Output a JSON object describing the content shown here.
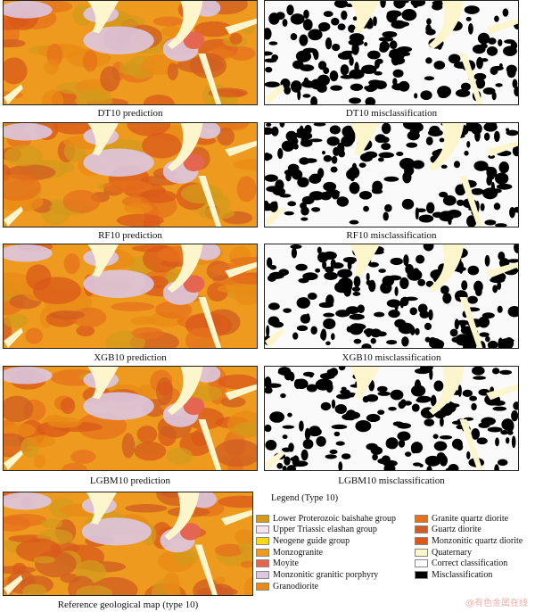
{
  "panels": [
    {
      "caption": "DT10 prediction",
      "kind": "prediction"
    },
    {
      "caption": "DT10 misclassification",
      "kind": "misclassification"
    },
    {
      "caption": "RF10 prediction",
      "kind": "prediction"
    },
    {
      "caption": "RF10 misclassification",
      "kind": "misclassification"
    },
    {
      "caption": "XGB10 prediction",
      "kind": "prediction"
    },
    {
      "caption": "XGB10 misclassification",
      "kind": "misclassification"
    },
    {
      "caption": "LGBM10 prediction",
      "kind": "prediction"
    },
    {
      "caption": "LGBM10 misclassification",
      "kind": "misclassification"
    },
    {
      "caption": "Reference geological map (type 10)",
      "kind": "reference"
    }
  ],
  "legend": {
    "title": "Legend (Type 10)",
    "items": [
      {
        "label": "Lower Proterozoic baishahe group",
        "color": "#d39a1c"
      },
      {
        "label": "Upper Triassic elashan group",
        "color": "#f5e4ee"
      },
      {
        "label": "Neogene guide group",
        "color": "#f9d91c"
      },
      {
        "label": "Monzogranite",
        "color": "#ee9a1e"
      },
      {
        "label": "Moyite",
        "color": "#e46650"
      },
      {
        "label": "Monzonitic granitic porphyry",
        "color": "#dcc7e0"
      },
      {
        "label": "Granodiorite",
        "color": "#ea8a16"
      },
      {
        "label": "Granite quartz diorite",
        "color": "#e6701c"
      },
      {
        "label": "Guartz diorite",
        "color": "#cf5c22"
      },
      {
        "label": "Monzonitic quartz diorite",
        "color": "#d9581a"
      },
      {
        "label": "Quaternary",
        "color": "#fdf6cc"
      },
      {
        "label": "Correct classification",
        "color": "#ffffff"
      },
      {
        "label": "Misclassification",
        "color": "#000000"
      }
    ]
  },
  "watermark": "@有色金属在线"
}
